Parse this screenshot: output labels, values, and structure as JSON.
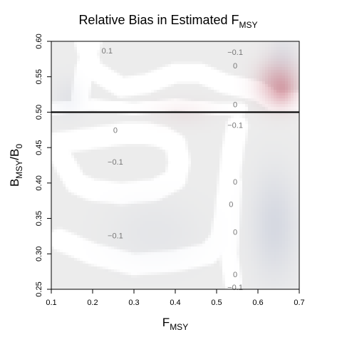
{
  "chart_data": {
    "type": "heatmap",
    "title_main": "Relative Bias in Estimated F",
    "title_sub": "MSY",
    "xlabel_main": "F",
    "xlabel_sub": "MSY",
    "ylabel_parts": [
      "B",
      "MSY",
      "/B",
      "0"
    ],
    "xlim": [
      0.1,
      0.7
    ],
    "ylim": [
      0.25,
      0.6
    ],
    "x_ticks": [
      0.1,
      0.2,
      0.3,
      0.4,
      0.5,
      0.6,
      0.7
    ],
    "x_tick_labels": [
      "0.1",
      "0.2",
      "0.3",
      "0.4",
      "0.5",
      "0.6",
      "0.7"
    ],
    "y_ticks": [
      0.25,
      0.3,
      0.35,
      0.4,
      0.45,
      0.5,
      0.55,
      0.6
    ],
    "y_tick_labels": [
      "0.25",
      "0.30",
      "0.35",
      "0.40",
      "0.45",
      "0.50",
      "0.55",
      "0.60"
    ],
    "reference_line": {
      "orientation": "horizontal",
      "y": 0.5
    },
    "colors": {
      "positive": "#c06070",
      "negative": "#7080b0",
      "near_zero": "#ffffff",
      "background": "#ececec"
    },
    "regions": [
      {
        "kind": "peak",
        "x": 0.65,
        "y": 0.54,
        "rx": 0.055,
        "ry": 0.035,
        "value": 0.45
      },
      {
        "kind": "peak",
        "x": 0.66,
        "y": 0.53,
        "rx": 0.025,
        "ry": 0.018,
        "value": 0.25
      },
      {
        "kind": "peak",
        "x": 0.42,
        "y": 0.5,
        "rx": 0.08,
        "ry": 0.02,
        "value": 0.08
      },
      {
        "kind": "trough",
        "x": 0.64,
        "y": 0.34,
        "rx": 0.06,
        "ry": 0.08,
        "value": 0.18
      },
      {
        "kind": "trough",
        "x": 0.66,
        "y": 0.58,
        "rx": 0.04,
        "ry": 0.03,
        "value": 0.1
      },
      {
        "kind": "trough",
        "x": 0.14,
        "y": 0.52,
        "rx": 0.04,
        "ry": 0.03,
        "value": 0.08
      },
      {
        "kind": "trough",
        "x": 0.35,
        "y": 0.33,
        "rx": 0.12,
        "ry": 0.05,
        "value": 0.06
      }
    ],
    "white_bands": [
      {
        "points": [
          [
            0.18,
            0.6
          ],
          [
            0.2,
            0.56
          ],
          [
            0.27,
            0.535
          ],
          [
            0.33,
            0.54
          ],
          [
            0.4,
            0.555
          ],
          [
            0.46,
            0.555
          ],
          [
            0.52,
            0.54
          ],
          [
            0.56,
            0.535
          ],
          [
            0.6,
            0.53
          ],
          [
            0.64,
            0.515
          ],
          [
            0.7,
            0.515
          ]
        ],
        "width": 0.02
      },
      {
        "points": [
          [
            0.1,
            0.505
          ],
          [
            0.2,
            0.51
          ],
          [
            0.3,
            0.505
          ],
          [
            0.4,
            0.51
          ],
          [
            0.5,
            0.505
          ],
          [
            0.56,
            0.505
          ]
        ],
        "width": 0.012
      },
      {
        "points": [
          [
            0.2,
            0.6
          ],
          [
            0.18,
            0.56
          ],
          [
            0.17,
            0.52
          ]
        ],
        "width": 0.018
      },
      {
        "points": [
          [
            0.1,
            0.455
          ],
          [
            0.16,
            0.46
          ],
          [
            0.22,
            0.465
          ],
          [
            0.28,
            0.47
          ],
          [
            0.33,
            0.47
          ],
          [
            0.37,
            0.465
          ],
          [
            0.4,
            0.455
          ],
          [
            0.41,
            0.43
          ],
          [
            0.4,
            0.405
          ],
          [
            0.35,
            0.39
          ],
          [
            0.27,
            0.385
          ],
          [
            0.2,
            0.39
          ],
          [
            0.16,
            0.4
          ],
          [
            0.14,
            0.42
          ],
          [
            0.12,
            0.44
          ],
          [
            0.1,
            0.455
          ]
        ],
        "width": 0.022
      },
      {
        "points": [
          [
            0.12,
            0.32
          ],
          [
            0.2,
            0.3
          ],
          [
            0.3,
            0.285
          ],
          [
            0.4,
            0.29
          ],
          [
            0.48,
            0.3
          ],
          [
            0.51,
            0.32
          ],
          [
            0.52,
            0.35
          ],
          [
            0.53,
            0.4
          ],
          [
            0.54,
            0.45
          ],
          [
            0.55,
            0.48
          ]
        ],
        "width": 0.022
      },
      {
        "points": [
          [
            0.54,
            0.26
          ],
          [
            0.53,
            0.3
          ],
          [
            0.535,
            0.35
          ],
          [
            0.54,
            0.4
          ]
        ],
        "width": 0.018
      }
    ],
    "contour_labels": [
      {
        "x": 0.235,
        "y": 0.587,
        "text": "0.1"
      },
      {
        "x": 0.545,
        "y": 0.585,
        "text": "−0.1"
      },
      {
        "x": 0.545,
        "y": 0.566,
        "text": "0"
      },
      {
        "x": 0.545,
        "y": 0.511,
        "text": "0"
      },
      {
        "x": 0.545,
        "y": 0.482,
        "text": "−0.1"
      },
      {
        "x": 0.255,
        "y": 0.475,
        "text": "0"
      },
      {
        "x": 0.255,
        "y": 0.43,
        "text": "−0.1"
      },
      {
        "x": 0.545,
        "y": 0.402,
        "text": "0"
      },
      {
        "x": 0.535,
        "y": 0.37,
        "text": "0"
      },
      {
        "x": 0.545,
        "y": 0.331,
        "text": "0"
      },
      {
        "x": 0.255,
        "y": 0.326,
        "text": "−0.1"
      },
      {
        "x": 0.545,
        "y": 0.271,
        "text": "0"
      },
      {
        "x": 0.545,
        "y": 0.253,
        "text": "−0.1"
      }
    ]
  }
}
